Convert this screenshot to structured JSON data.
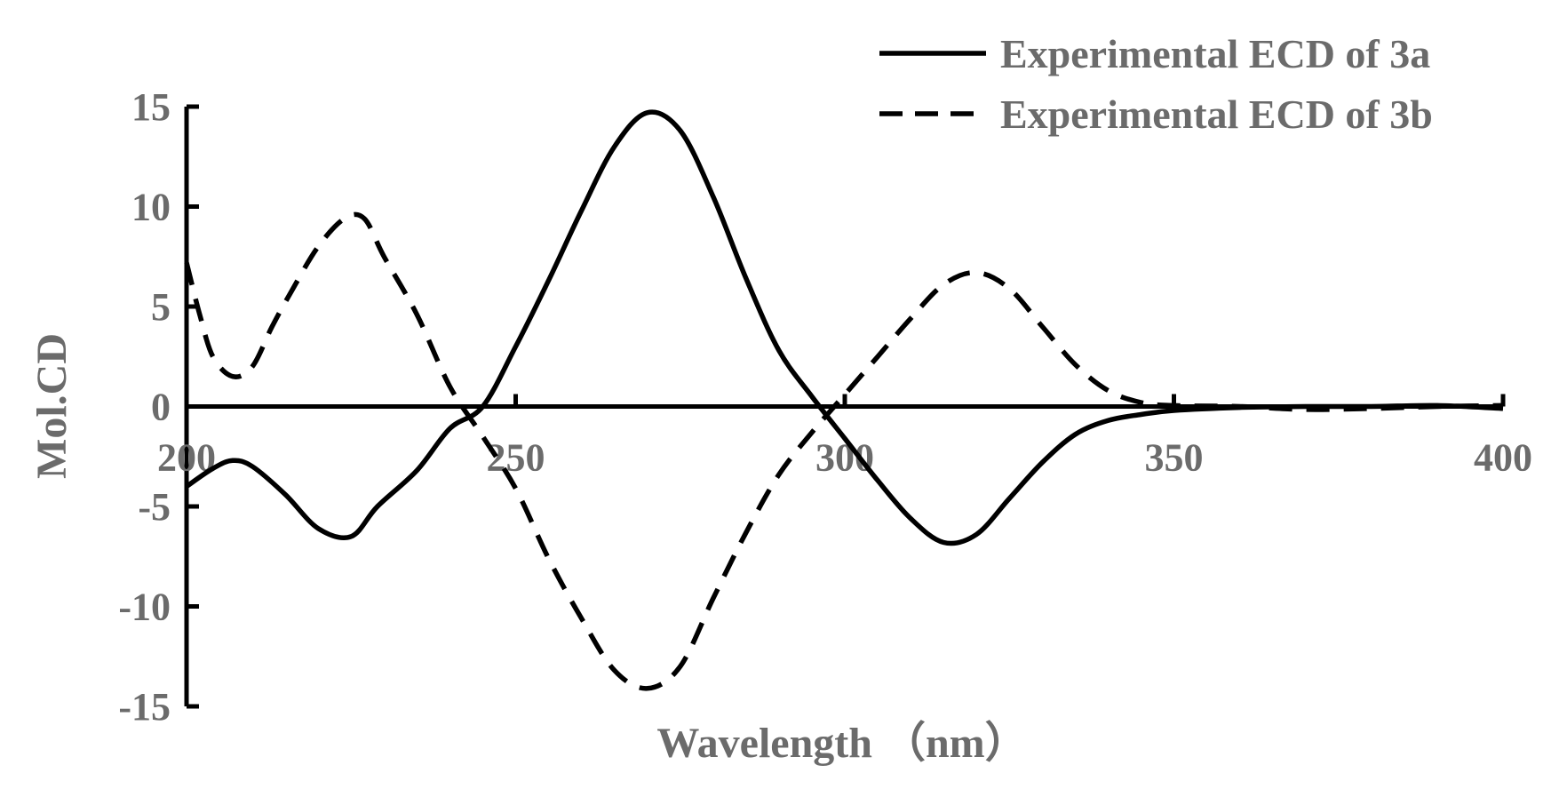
{
  "chart_data": {
    "type": "line",
    "title": "",
    "xlabel": "Wavelength （nm）",
    "ylabel": "Mol.CD",
    "xlim": [
      200,
      400
    ],
    "ylim": [
      -15,
      15
    ],
    "x_ticks": [
      "200",
      "250",
      "300",
      "350",
      "400"
    ],
    "y_ticks": [
      "15",
      "10",
      "5",
      "0",
      "-5",
      "-10",
      "-15"
    ],
    "grid": false,
    "legend_position": "top-right",
    "colors": {
      "line": "#000000",
      "text": "#6b6b6b",
      "axis": "#000000"
    },
    "series": [
      {
        "name": "Experimental ECD of 3a",
        "style": "solid",
        "points": [
          [
            200,
            -4.0
          ],
          [
            204,
            -3.1
          ],
          [
            207,
            -2.7
          ],
          [
            210,
            -3.0
          ],
          [
            215,
            -4.4
          ],
          [
            220,
            -6.1
          ],
          [
            225,
            -6.5
          ],
          [
            229,
            -5.0
          ],
          [
            235,
            -3.2
          ],
          [
            240,
            -1.1
          ],
          [
            245,
            0.0
          ],
          [
            250,
            3.0
          ],
          [
            255,
            6.3
          ],
          [
            260,
            9.8
          ],
          [
            265,
            13.0
          ],
          [
            270,
            14.7
          ],
          [
            275,
            13.8
          ],
          [
            280,
            10.5
          ],
          [
            285,
            6.4
          ],
          [
            290,
            2.8
          ],
          [
            295,
            0.5
          ],
          [
            300,
            -1.6
          ],
          [
            305,
            -3.7
          ],
          [
            310,
            -5.6
          ],
          [
            315,
            -6.8
          ],
          [
            320,
            -6.4
          ],
          [
            325,
            -4.6
          ],
          [
            330,
            -2.8
          ],
          [
            335,
            -1.4
          ],
          [
            340,
            -0.7
          ],
          [
            345,
            -0.4
          ],
          [
            350,
            -0.2
          ],
          [
            360,
            -0.05
          ],
          [
            370,
            0.0
          ],
          [
            380,
            0.0
          ],
          [
            390,
            0.05
          ],
          [
            400,
            -0.1
          ]
        ]
      },
      {
        "name": "Experimental ECD of 3b",
        "style": "dashed",
        "points": [
          [
            200,
            7.2
          ],
          [
            202,
            4.6
          ],
          [
            204,
            2.5
          ],
          [
            207,
            1.5
          ],
          [
            210,
            2.0
          ],
          [
            213,
            4.0
          ],
          [
            216,
            5.8
          ],
          [
            220,
            8.0
          ],
          [
            224,
            9.4
          ],
          [
            227,
            9.4
          ],
          [
            230,
            7.5
          ],
          [
            235,
            4.6
          ],
          [
            240,
            1.0
          ],
          [
            245,
            -1.5
          ],
          [
            250,
            -4.1
          ],
          [
            255,
            -7.6
          ],
          [
            260,
            -10.6
          ],
          [
            265,
            -13.2
          ],
          [
            270,
            -14.1
          ],
          [
            275,
            -13.0
          ],
          [
            280,
            -9.6
          ],
          [
            285,
            -6.3
          ],
          [
            290,
            -3.4
          ],
          [
            295,
            -1.3
          ],
          [
            300,
            0.6
          ],
          [
            305,
            2.5
          ],
          [
            310,
            4.4
          ],
          [
            315,
            6.1
          ],
          [
            320,
            6.7
          ],
          [
            325,
            5.9
          ],
          [
            330,
            4.0
          ],
          [
            335,
            2.1
          ],
          [
            340,
            0.8
          ],
          [
            345,
            0.2
          ],
          [
            350,
            0.05
          ],
          [
            360,
            0.0
          ],
          [
            370,
            -0.15
          ],
          [
            380,
            -0.1
          ],
          [
            390,
            0.0
          ],
          [
            400,
            0.05
          ]
        ]
      }
    ]
  }
}
